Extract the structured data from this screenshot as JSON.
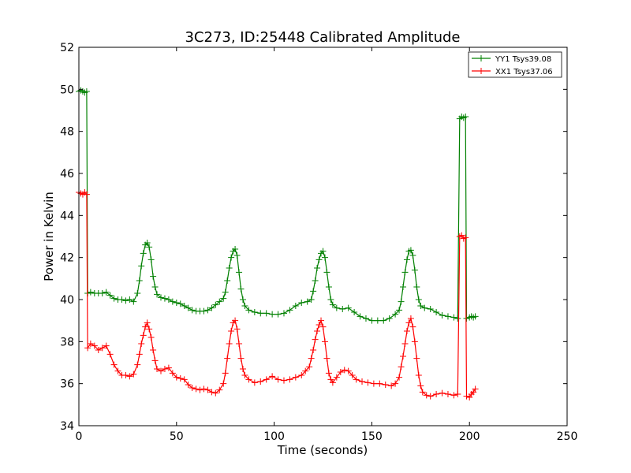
{
  "chart_data": {
    "type": "line",
    "title": "3C273, ID:25448 Calibrated Amplitude",
    "xlabel": "Time (seconds)",
    "ylabel": "Power in Kelvin",
    "xlim": [
      0,
      250
    ],
    "ylim": [
      34,
      52
    ],
    "xticks": [
      0,
      50,
      100,
      150,
      200,
      250
    ],
    "yticks": [
      34,
      36,
      38,
      40,
      42,
      44,
      46,
      48,
      50,
      52
    ],
    "grid": false,
    "legend_position": "top-right",
    "marker": "+",
    "series": [
      {
        "name": "YY1 Tsys39.08",
        "color": "#008000",
        "points": [
          [
            0,
            49.9
          ],
          [
            1,
            49.95
          ],
          [
            2,
            49.9
          ],
          [
            3,
            49.85
          ],
          [
            4,
            49.9
          ],
          [
            4.5,
            40.3
          ],
          [
            6,
            40.35
          ],
          [
            8,
            40.3
          ],
          [
            10,
            40.3
          ],
          [
            12,
            40.3
          ],
          [
            14,
            40.35
          ],
          [
            16,
            40.2
          ],
          [
            18,
            40.05
          ],
          [
            20,
            40.0
          ],
          [
            22,
            40.0
          ],
          [
            24,
            39.95
          ],
          [
            26,
            40.0
          ],
          [
            28,
            39.9
          ],
          [
            30,
            40.3
          ],
          [
            31,
            40.9
          ],
          [
            32,
            41.6
          ],
          [
            33,
            42.2
          ],
          [
            34,
            42.6
          ],
          [
            35,
            42.7
          ],
          [
            36,
            42.5
          ],
          [
            37,
            41.9
          ],
          [
            38,
            41.1
          ],
          [
            39,
            40.6
          ],
          [
            40,
            40.25
          ],
          [
            42,
            40.1
          ],
          [
            44,
            40.05
          ],
          [
            46,
            40.0
          ],
          [
            48,
            39.9
          ],
          [
            50,
            39.85
          ],
          [
            52,
            39.8
          ],
          [
            54,
            39.7
          ],
          [
            56,
            39.6
          ],
          [
            58,
            39.5
          ],
          [
            60,
            39.45
          ],
          [
            62,
            39.45
          ],
          [
            64,
            39.45
          ],
          [
            66,
            39.5
          ],
          [
            68,
            39.6
          ],
          [
            70,
            39.75
          ],
          [
            72,
            39.9
          ],
          [
            74,
            40.05
          ],
          [
            75,
            40.35
          ],
          [
            76,
            40.9
          ],
          [
            77,
            41.5
          ],
          [
            78,
            42.0
          ],
          [
            79,
            42.3
          ],
          [
            80,
            42.4
          ],
          [
            81,
            42.1
          ],
          [
            82,
            41.3
          ],
          [
            83,
            40.5
          ],
          [
            84,
            40.0
          ],
          [
            85,
            39.7
          ],
          [
            87,
            39.5
          ],
          [
            90,
            39.4
          ],
          [
            93,
            39.35
          ],
          [
            96,
            39.35
          ],
          [
            99,
            39.3
          ],
          [
            102,
            39.3
          ],
          [
            105,
            39.35
          ],
          [
            108,
            39.5
          ],
          [
            111,
            39.7
          ],
          [
            114,
            39.85
          ],
          [
            117,
            39.9
          ],
          [
            119,
            40.0
          ],
          [
            120,
            40.4
          ],
          [
            121,
            40.9
          ],
          [
            122,
            41.5
          ],
          [
            123,
            41.9
          ],
          [
            124,
            42.2
          ],
          [
            125,
            42.3
          ],
          [
            126,
            42.0
          ],
          [
            127,
            41.3
          ],
          [
            128,
            40.6
          ],
          [
            129,
            40.0
          ],
          [
            130,
            39.75
          ],
          [
            132,
            39.6
          ],
          [
            135,
            39.55
          ],
          [
            138,
            39.6
          ],
          [
            141,
            39.4
          ],
          [
            144,
            39.2
          ],
          [
            147,
            39.1
          ],
          [
            150,
            39.0
          ],
          [
            153,
            39.0
          ],
          [
            156,
            39.0
          ],
          [
            159,
            39.1
          ],
          [
            162,
            39.3
          ],
          [
            164,
            39.5
          ],
          [
            165,
            39.9
          ],
          [
            166,
            40.6
          ],
          [
            167,
            41.3
          ],
          [
            168,
            41.9
          ],
          [
            169,
            42.3
          ],
          [
            170,
            42.35
          ],
          [
            171,
            42.1
          ],
          [
            172,
            41.4
          ],
          [
            173,
            40.6
          ],
          [
            174,
            40.0
          ],
          [
            175,
            39.7
          ],
          [
            177,
            39.6
          ],
          [
            180,
            39.55
          ],
          [
            183,
            39.4
          ],
          [
            186,
            39.25
          ],
          [
            189,
            39.2
          ],
          [
            192,
            39.15
          ],
          [
            194,
            39.1
          ],
          [
            195,
            48.6
          ],
          [
            196,
            48.7
          ],
          [
            197,
            48.65
          ],
          [
            198,
            48.7
          ],
          [
            198.5,
            39.1
          ],
          [
            200,
            39.15
          ],
          [
            201,
            39.2
          ],
          [
            202,
            39.15
          ],
          [
            203,
            39.2
          ]
        ]
      },
      {
        "name": "XX1 Tsys37.06",
        "color": "#ff0000",
        "points": [
          [
            0,
            45.1
          ],
          [
            1,
            45.05
          ],
          [
            2,
            45.0
          ],
          [
            3,
            45.1
          ],
          [
            4,
            45.0
          ],
          [
            4.5,
            37.7
          ],
          [
            6,
            37.9
          ],
          [
            8,
            37.8
          ],
          [
            10,
            37.6
          ],
          [
            12,
            37.7
          ],
          [
            14,
            37.8
          ],
          [
            16,
            37.4
          ],
          [
            18,
            36.9
          ],
          [
            20,
            36.6
          ],
          [
            22,
            36.4
          ],
          [
            24,
            36.4
          ],
          [
            26,
            36.35
          ],
          [
            28,
            36.45
          ],
          [
            30,
            36.9
          ],
          [
            31,
            37.4
          ],
          [
            32,
            37.9
          ],
          [
            33,
            38.3
          ],
          [
            34,
            38.7
          ],
          [
            35,
            38.9
          ],
          [
            36,
            38.6
          ],
          [
            37,
            38.2
          ],
          [
            38,
            37.6
          ],
          [
            39,
            37.1
          ],
          [
            40,
            36.7
          ],
          [
            42,
            36.6
          ],
          [
            44,
            36.7
          ],
          [
            46,
            36.75
          ],
          [
            48,
            36.5
          ],
          [
            50,
            36.3
          ],
          [
            52,
            36.25
          ],
          [
            54,
            36.2
          ],
          [
            56,
            35.95
          ],
          [
            58,
            35.8
          ],
          [
            60,
            35.75
          ],
          [
            62,
            35.7
          ],
          [
            64,
            35.75
          ],
          [
            66,
            35.7
          ],
          [
            68,
            35.6
          ],
          [
            70,
            35.55
          ],
          [
            72,
            35.7
          ],
          [
            74,
            36.0
          ],
          [
            75,
            36.5
          ],
          [
            76,
            37.2
          ],
          [
            77,
            37.9
          ],
          [
            78,
            38.5
          ],
          [
            79,
            38.9
          ],
          [
            80,
            39.0
          ],
          [
            81,
            38.6
          ],
          [
            82,
            37.9
          ],
          [
            83,
            37.2
          ],
          [
            84,
            36.7
          ],
          [
            85,
            36.4
          ],
          [
            87,
            36.2
          ],
          [
            90,
            36.05
          ],
          [
            93,
            36.1
          ],
          [
            96,
            36.2
          ],
          [
            99,
            36.35
          ],
          [
            102,
            36.2
          ],
          [
            105,
            36.15
          ],
          [
            108,
            36.2
          ],
          [
            111,
            36.3
          ],
          [
            114,
            36.4
          ],
          [
            116,
            36.6
          ],
          [
            118,
            36.8
          ],
          [
            119,
            37.2
          ],
          [
            120,
            37.6
          ],
          [
            121,
            38.1
          ],
          [
            122,
            38.5
          ],
          [
            123,
            38.8
          ],
          [
            124,
            39.0
          ],
          [
            125,
            38.7
          ],
          [
            126,
            38.0
          ],
          [
            127,
            37.2
          ],
          [
            128,
            36.5
          ],
          [
            129,
            36.2
          ],
          [
            130,
            36.05
          ],
          [
            132,
            36.3
          ],
          [
            134,
            36.55
          ],
          [
            136,
            36.65
          ],
          [
            138,
            36.6
          ],
          [
            140,
            36.4
          ],
          [
            142,
            36.2
          ],
          [
            145,
            36.1
          ],
          [
            148,
            36.05
          ],
          [
            151,
            36.0
          ],
          [
            154,
            36.0
          ],
          [
            157,
            35.95
          ],
          [
            160,
            35.9
          ],
          [
            162,
            36.0
          ],
          [
            164,
            36.3
          ],
          [
            165,
            36.8
          ],
          [
            166,
            37.3
          ],
          [
            167,
            37.9
          ],
          [
            168,
            38.5
          ],
          [
            169,
            38.9
          ],
          [
            170,
            39.1
          ],
          [
            171,
            38.7
          ],
          [
            172,
            38.0
          ],
          [
            173,
            37.2
          ],
          [
            174,
            36.4
          ],
          [
            175,
            35.9
          ],
          [
            176,
            35.6
          ],
          [
            178,
            35.45
          ],
          [
            180,
            35.4
          ],
          [
            183,
            35.5
          ],
          [
            186,
            35.55
          ],
          [
            189,
            35.5
          ],
          [
            192,
            35.45
          ],
          [
            194,
            35.5
          ],
          [
            195,
            43.0
          ],
          [
            196,
            43.05
          ],
          [
            197,
            42.9
          ],
          [
            198,
            42.95
          ],
          [
            198.5,
            35.4
          ],
          [
            200,
            35.35
          ],
          [
            201,
            35.5
          ],
          [
            202,
            35.6
          ],
          [
            203,
            35.75
          ]
        ]
      }
    ]
  }
}
